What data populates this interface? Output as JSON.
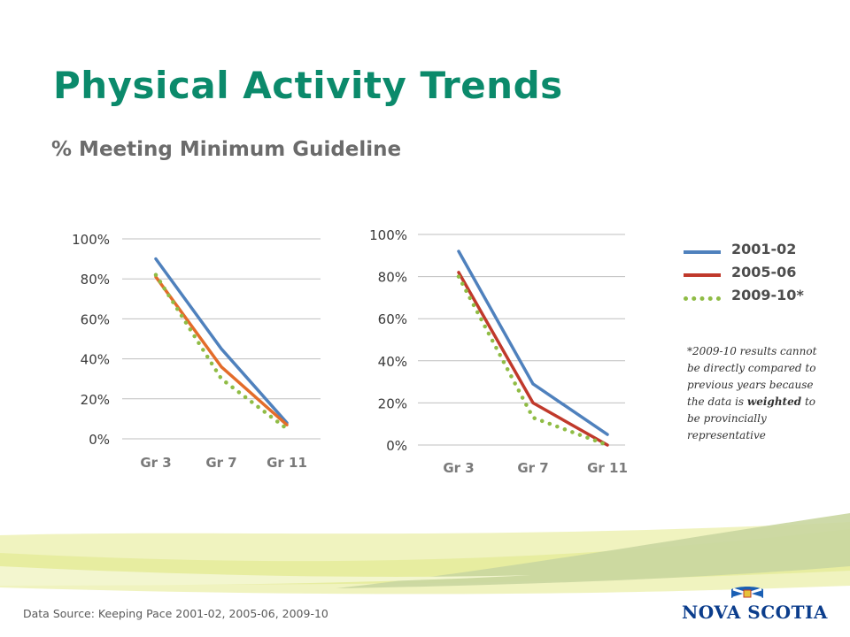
{
  "title": "Physical Activity Trends",
  "subtitle": "% Meeting Minimum Guideline",
  "legend": [
    {
      "label": "2001-02",
      "color": "#4f81bd",
      "style": "solid"
    },
    {
      "label": "2005-06",
      "color": "#c0392b",
      "style": "solid"
    },
    {
      "label": "2009-10*",
      "color": "#8fbc45",
      "style": "dotted"
    }
  ],
  "footnote": {
    "part1": "*2009-10 results cannot be directly compared to previous years  because the data is ",
    "emphasis": "weighted",
    "part2": " to be provincially representative"
  },
  "source": "Data Source:  Keeping Pace 2001-02, 2005-06, 2009-10",
  "logo": {
    "text": "NOVA SCOTIA"
  },
  "chart_data": [
    {
      "type": "line",
      "title": "",
      "categories": [
        "Gr 3",
        "Gr 7",
        "Gr 11"
      ],
      "ylim": [
        0,
        100
      ],
      "yticks": [
        "0%",
        "20%",
        "40%",
        "60%",
        "80%",
        "100%"
      ],
      "grid": true,
      "series": [
        {
          "name": "2001-02",
          "values": [
            90,
            45,
            8
          ],
          "color": "#4f81bd",
          "style": "solid"
        },
        {
          "name": "2005-06",
          "values": [
            81,
            36,
            7
          ],
          "color": "#e36c2a",
          "style": "solid"
        },
        {
          "name": "2009-10*",
          "values": [
            82,
            30,
            5
          ],
          "color": "#8fbc45",
          "style": "dotted"
        }
      ]
    },
    {
      "type": "line",
      "title": "",
      "categories": [
        "Gr 3",
        "Gr 7",
        "Gr 11"
      ],
      "ylim": [
        0,
        100
      ],
      "yticks": [
        "0%",
        "20%",
        "40%",
        "60%",
        "80%",
        "100%"
      ],
      "grid": true,
      "series": [
        {
          "name": "2001-02",
          "values": [
            92,
            29,
            5
          ],
          "color": "#4f81bd",
          "style": "solid"
        },
        {
          "name": "2005-06",
          "values": [
            82,
            20,
            0
          ],
          "color": "#c0392b",
          "style": "solid"
        },
        {
          "name": "2009-10*",
          "values": [
            80,
            13,
            0
          ],
          "color": "#8fbc45",
          "style": "dotted"
        }
      ]
    }
  ]
}
